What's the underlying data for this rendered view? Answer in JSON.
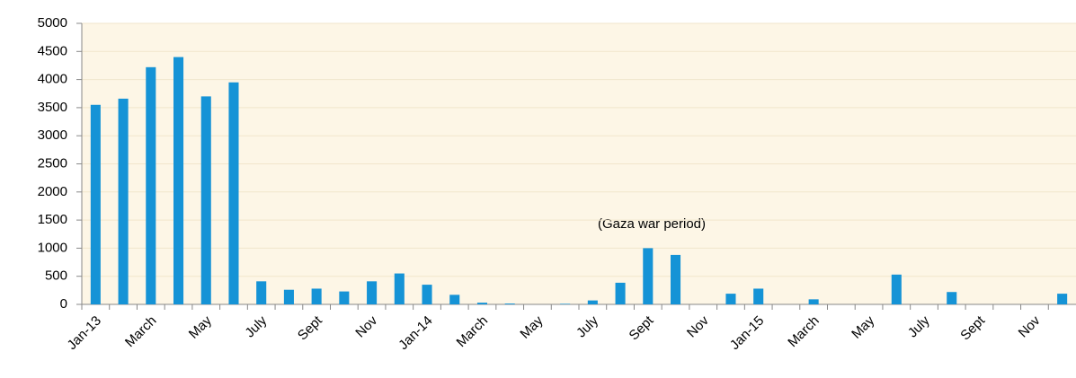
{
  "chart_data": {
    "type": "bar",
    "annotations": [
      "(Gaza war period)"
    ],
    "categories": [
      "Jan-13",
      null,
      "March",
      null,
      "May",
      null,
      "July",
      null,
      "Sept",
      null,
      "Nov",
      null,
      "Jan-14",
      null,
      "March",
      null,
      "May",
      null,
      "July",
      null,
      "Sept",
      null,
      "Nov",
      null,
      "Jan-15",
      null,
      "March",
      null,
      "May",
      null,
      "July",
      null,
      "Sept",
      null,
      "Nov",
      null
    ],
    "values": [
      3550,
      3660,
      4220,
      4400,
      3700,
      3950,
      410,
      260,
      280,
      230,
      410,
      550,
      350,
      170,
      30,
      15,
      0,
      10,
      70,
      385,
      1000,
      880,
      0,
      190,
      280,
      0,
      90,
      0,
      0,
      530,
      0,
      220,
      0,
      0,
      0,
      190
    ],
    "color": "#1593d6",
    "ylim": [
      0,
      5000
    ],
    "yticks": [
      0,
      500,
      1000,
      1500,
      2000,
      2500,
      3000,
      3500,
      4000,
      4500,
      5000
    ],
    "grid": true
  }
}
